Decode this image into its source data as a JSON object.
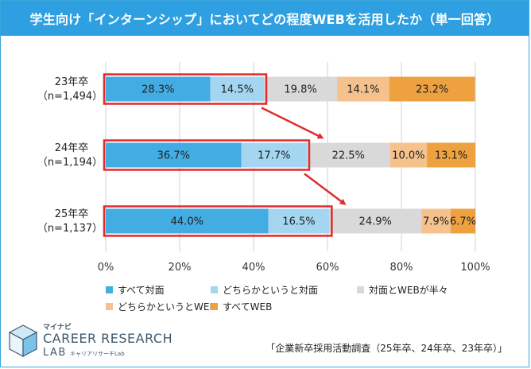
{
  "header": {
    "title": "学生向け「インターンシップ」においてどの程度WEBを活用したか（単一回答）"
  },
  "chart_data": {
    "type": "bar",
    "orientation": "horizontal-stacked-percent",
    "title": "学生向け「インターンシップ」においてどの程度WEBを活用したか（単一回答）",
    "categories": [
      {
        "year": "23年卒",
        "n": "（n=1,494）"
      },
      {
        "year": "24年卒",
        "n": "（n=1,194）"
      },
      {
        "year": "25年卒",
        "n": "（n=1,137）"
      }
    ],
    "series": [
      {
        "name": "すべて対面",
        "color": "#43ace3",
        "values": [
          28.3,
          36.7,
          44.0
        ],
        "labels": [
          "28.3%",
          "36.7%",
          "44.0%"
        ]
      },
      {
        "name": "どちらかというと対面",
        "color": "#a4d6f1",
        "values": [
          14.5,
          17.7,
          16.5
        ],
        "labels": [
          "14.5%",
          "17.7%",
          "16.5%"
        ]
      },
      {
        "name": "対面とWEBが半々",
        "color": "#d9d9d9",
        "values": [
          19.8,
          22.5,
          24.9
        ],
        "labels": [
          "19.8%",
          "22.5%",
          "24.9%"
        ]
      },
      {
        "name": "どちらかというとWEB",
        "color": "#f5c28d",
        "values": [
          14.1,
          10.0,
          7.9
        ],
        "labels": [
          "14.1%",
          "10.0%",
          "7.9%"
        ]
      },
      {
        "name": "すべてWEB",
        "color": "#eea13f",
        "values": [
          23.2,
          13.1,
          6.7
        ],
        "labels": [
          "23.2%",
          "13.1%",
          "6.7%"
        ]
      }
    ],
    "xticks": [
      "0%",
      "20%",
      "40%",
      "60%",
      "80%",
      "100%"
    ],
    "xlim": [
      0,
      100
    ],
    "highlight_series": [
      0,
      1
    ],
    "highlight_color": "#e02b2b",
    "legend_position": "bottom"
  },
  "logo": {
    "brand": "マイナビ",
    "line1": "CAREER RESEARCH",
    "line2": "LAB",
    "sub": "キャリアリサーチLab"
  },
  "source": "「企業新卒採用活動調査（25年卒、24年卒、23年卒）」"
}
